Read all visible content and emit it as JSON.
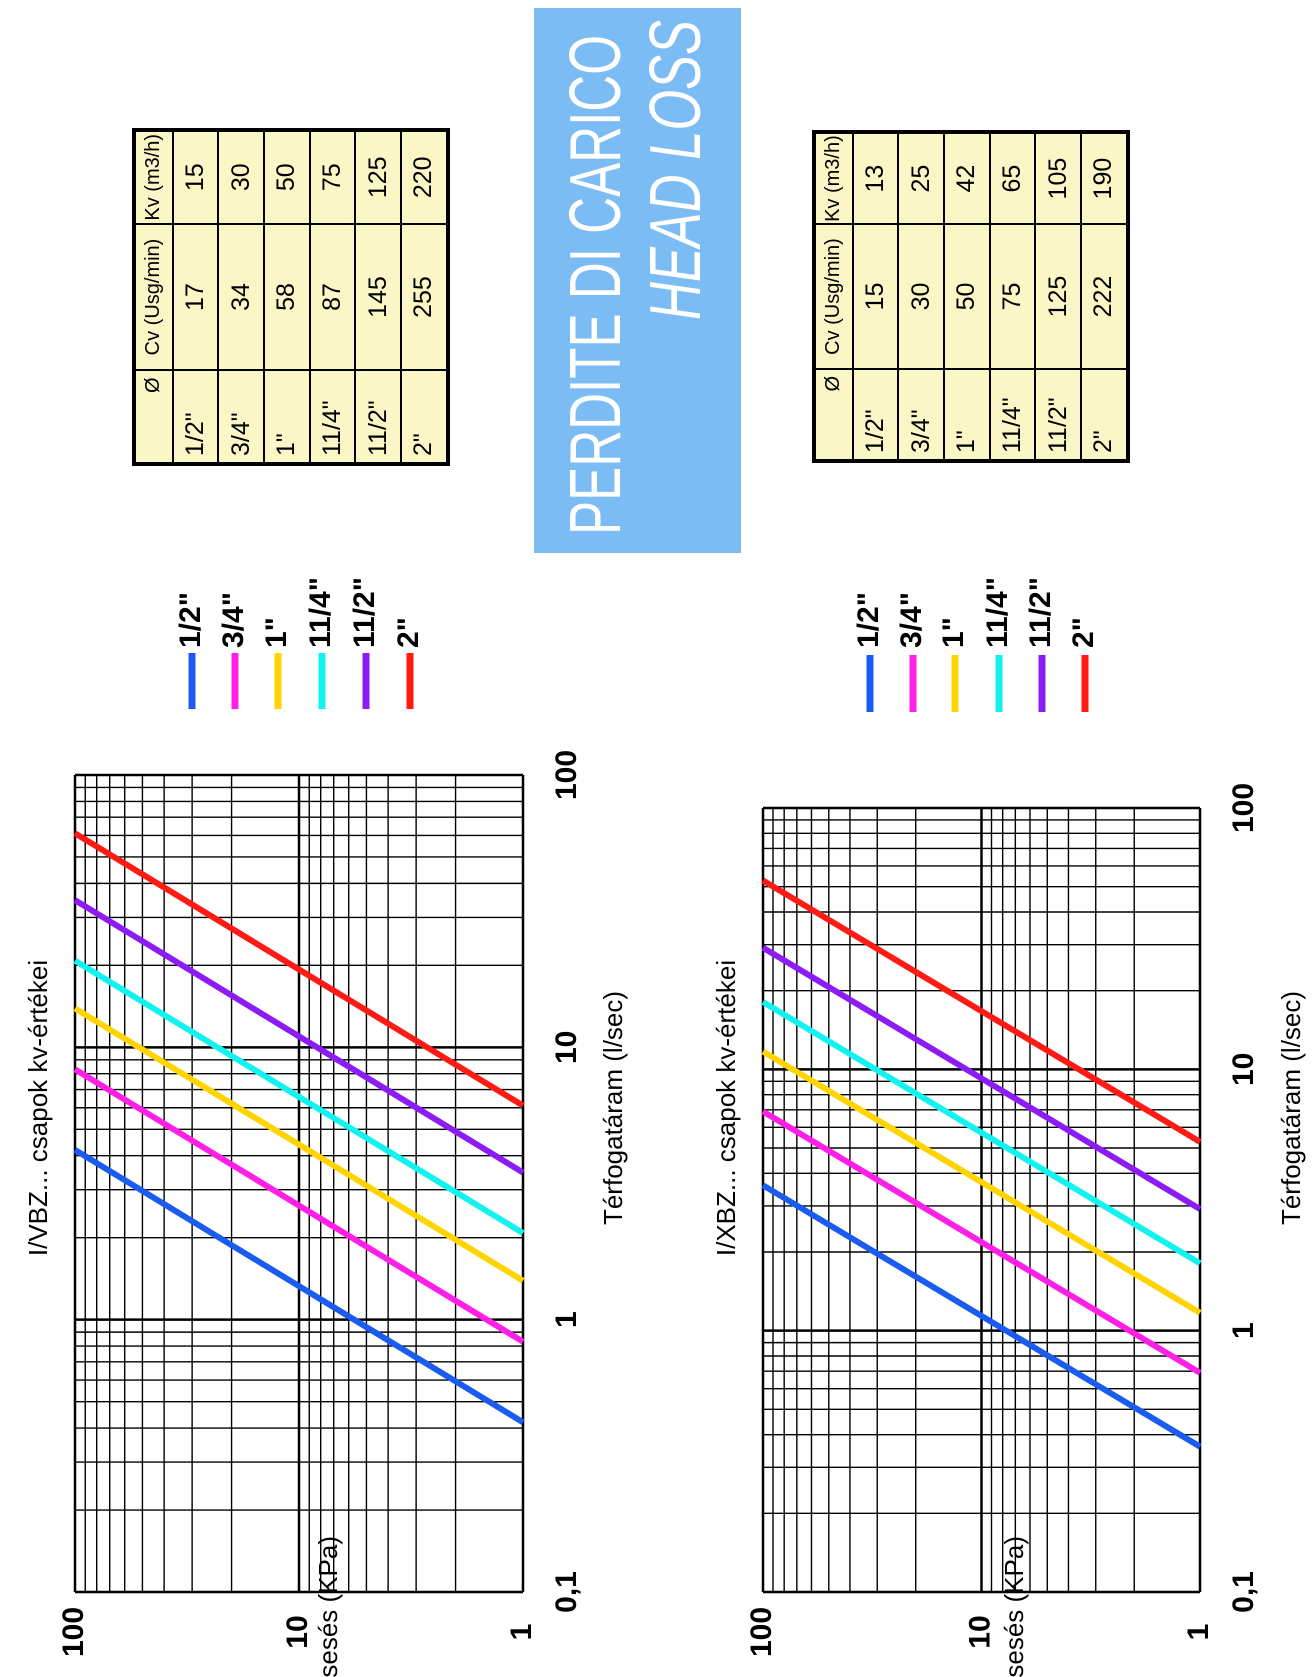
{
  "banner": {
    "line1": "PERDITE DI CARICO",
    "line2": "HEAD LOSS",
    "color": "#7bbcf5"
  },
  "tables": [
    {
      "headers": [
        "Ø",
        "Cv (Usg/min)",
        "Kv (m3/h)"
      ],
      "rows": [
        [
          "1/2\"",
          "17",
          "15"
        ],
        [
          "3/4\"",
          "34",
          "30"
        ],
        [
          "1\"",
          "58",
          "50"
        ],
        [
          "11/4\"",
          "87",
          "75"
        ],
        [
          "11/2\"",
          "145",
          "125"
        ],
        [
          "2\"",
          "255",
          "220"
        ]
      ]
    },
    {
      "headers": [
        "Ø",
        "Cv (Usg/min)",
        "Kv (m3/h)"
      ],
      "rows": [
        [
          "1/2\"",
          "15",
          "13"
        ],
        [
          "3/4\"",
          "30",
          "25"
        ],
        [
          "1\"",
          "50",
          "42"
        ],
        [
          "11/4\"",
          "75",
          "65"
        ],
        [
          "11/2\"",
          "125",
          "105"
        ],
        [
          "2\"",
          "222",
          "190"
        ]
      ]
    }
  ],
  "chart_data": [
    {
      "type": "line",
      "title": "I/VBZ... csapok kv-értékei",
      "xlabel": "Térfogatáram (l/sec)",
      "ylabel": "Nyomásesés (KPa)",
      "x_scale": "log",
      "y_scale": "log",
      "xlim": [
        0.1,
        100
      ],
      "ylim": [
        1,
        100
      ],
      "x_ticks": [
        "0,1",
        "1",
        "10",
        "100"
      ],
      "y_ticks": [
        "1",
        "10",
        "100"
      ],
      "grid": true,
      "legend_position": "right",
      "series": [
        {
          "name": "1/2\"",
          "color": "#1a5cf0",
          "x": [
            0.42,
            4.2
          ],
          "y": [
            1,
            100
          ]
        },
        {
          "name": "3/4\"",
          "color": "#ff1fe6",
          "x": [
            0.83,
            8.3
          ],
          "y": [
            1,
            100
          ]
        },
        {
          "name": "1\"",
          "color": "#ffd400",
          "x": [
            1.39,
            13.9
          ],
          "y": [
            1,
            100
          ]
        },
        {
          "name": "11/4\"",
          "color": "#12f2ef",
          "x": [
            2.08,
            20.8
          ],
          "y": [
            1,
            100
          ]
        },
        {
          "name": "11/2\"",
          "color": "#8c1cf4",
          "x": [
            3.47,
            34.7
          ],
          "y": [
            1,
            100
          ]
        },
        {
          "name": "2\"",
          "color": "#ff1a14",
          "x": [
            6.11,
            61.1
          ],
          "y": [
            1,
            100
          ]
        }
      ]
    },
    {
      "type": "line",
      "title": "I/XBZ... csapok kv-értékei",
      "xlabel": "Térfogatáram (l/sec)",
      "ylabel": "Nyomásesés (KPa)",
      "x_scale": "log",
      "y_scale": "log",
      "xlim": [
        0.1,
        100
      ],
      "ylim": [
        1,
        100
      ],
      "x_ticks": [
        "0,1",
        "1",
        "10",
        "100"
      ],
      "y_ticks": [
        "1",
        "10",
        "100"
      ],
      "grid": true,
      "legend_position": "right",
      "series": [
        {
          "name": "1/2\"",
          "color": "#1a5cf0",
          "x": [
            0.36,
            3.6
          ],
          "y": [
            1,
            100
          ]
        },
        {
          "name": "3/4\"",
          "color": "#ff1fe6",
          "x": [
            0.69,
            6.9
          ],
          "y": [
            1,
            100
          ]
        },
        {
          "name": "1\"",
          "color": "#ffd400",
          "x": [
            1.17,
            11.7
          ],
          "y": [
            1,
            100
          ]
        },
        {
          "name": "11/4\"",
          "color": "#12f2ef",
          "x": [
            1.81,
            18.1
          ],
          "y": [
            1,
            100
          ]
        },
        {
          "name": "11/2\"",
          "color": "#8c1cf4",
          "x": [
            2.92,
            29.2
          ],
          "y": [
            1,
            100
          ]
        },
        {
          "name": "2\"",
          "color": "#ff1a14",
          "x": [
            5.28,
            52.8
          ],
          "y": [
            1,
            100
          ]
        }
      ]
    }
  ]
}
